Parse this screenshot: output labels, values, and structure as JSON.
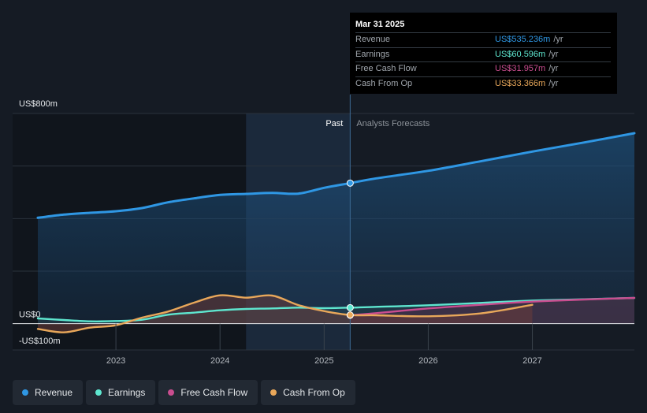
{
  "colors": {
    "background": "#151b24",
    "revenue": "#2f97e4",
    "earnings": "#5ee6cf",
    "fcf": "#c94d8f",
    "cfo": "#e8a75a",
    "past_shade": "#1c2b3e"
  },
  "tooltip": {
    "date": "Mar 31 2025",
    "unit": "/yr",
    "rows": [
      {
        "label": "Revenue",
        "value": "US$535.236m",
        "color": "#2f97e4"
      },
      {
        "label": "Earnings",
        "value": "US$60.596m",
        "color": "#5ee6cf"
      },
      {
        "label": "Free Cash Flow",
        "value": "US$31.957m",
        "color": "#c94d8f"
      },
      {
        "label": "Cash From Op",
        "value": "US$33.366m",
        "color": "#e8a75a"
      }
    ]
  },
  "legend": [
    {
      "label": "Revenue",
      "color": "#2f97e4"
    },
    {
      "label": "Earnings",
      "color": "#5ee6cf"
    },
    {
      "label": "Free Cash Flow",
      "color": "#c94d8f"
    },
    {
      "label": "Cash From Op",
      "color": "#e8a75a"
    }
  ],
  "chart_data": {
    "type": "line",
    "title": "",
    "xlabel": "",
    "ylabel": "",
    "ylim": [
      -100,
      800
    ],
    "xlim": [
      2022.25,
      2027.98
    ],
    "y_axis_labels": [
      {
        "value": 800,
        "label": "US$800m"
      },
      {
        "value": 0,
        "label": "US$0"
      },
      {
        "value": -100,
        "label": "-US$100m"
      }
    ],
    "x_ticks": [
      {
        "value": 2023,
        "label": "2023"
      },
      {
        "value": 2024,
        "label": "2024"
      },
      {
        "value": 2025,
        "label": "2025"
      },
      {
        "value": 2026,
        "label": "2026"
      },
      {
        "value": 2027,
        "label": "2027"
      }
    ],
    "gridlines": [
      200,
      400,
      600
    ],
    "past_label": "Past",
    "forecast_label": "Analysts Forecasts",
    "divider_x": 2025.25,
    "highlight_start_x": 2024.25,
    "series": [
      {
        "name": "Revenue",
        "key": "revenue",
        "points": [
          [
            2022.25,
            403
          ],
          [
            2022.5,
            415
          ],
          [
            2022.75,
            422
          ],
          [
            2023,
            428
          ],
          [
            2023.25,
            440
          ],
          [
            2023.5,
            462
          ],
          [
            2023.75,
            477
          ],
          [
            2024,
            490
          ],
          [
            2024.25,
            494
          ],
          [
            2024.5,
            498
          ],
          [
            2024.75,
            495
          ],
          [
            2025,
            517
          ],
          [
            2025.25,
            535
          ],
          [
            2025.5,
            553
          ],
          [
            2026,
            582
          ],
          [
            2026.5,
            618
          ],
          [
            2027,
            655
          ],
          [
            2027.5,
            690
          ],
          [
            2027.98,
            725
          ]
        ]
      },
      {
        "name": "Earnings",
        "key": "earnings",
        "points": [
          [
            2022.25,
            20
          ],
          [
            2022.5,
            14
          ],
          [
            2022.75,
            9
          ],
          [
            2023,
            10
          ],
          [
            2023.25,
            15
          ],
          [
            2023.5,
            34
          ],
          [
            2023.75,
            42
          ],
          [
            2024,
            51
          ],
          [
            2024.25,
            56
          ],
          [
            2024.5,
            58
          ],
          [
            2024.75,
            61
          ],
          [
            2025,
            59
          ],
          [
            2025.25,
            61
          ],
          [
            2025.5,
            64
          ],
          [
            2026,
            70
          ],
          [
            2026.5,
            79
          ],
          [
            2027,
            88
          ],
          [
            2027.5,
            93
          ],
          [
            2027.98,
            98
          ]
        ]
      },
      {
        "name": "Free Cash Flow",
        "key": "fcf",
        "points": [
          [
            2025.25,
            32
          ],
          [
            2025.5,
            40
          ],
          [
            2026,
            58
          ],
          [
            2026.5,
            72
          ],
          [
            2027,
            84
          ],
          [
            2027.5,
            92
          ],
          [
            2027.98,
            98
          ]
        ]
      },
      {
        "name": "Cash From Op",
        "key": "cfo",
        "points": [
          [
            2022.25,
            -20
          ],
          [
            2022.5,
            -33
          ],
          [
            2022.75,
            -15
          ],
          [
            2023,
            -6
          ],
          [
            2023.25,
            23
          ],
          [
            2023.5,
            46
          ],
          [
            2023.75,
            80
          ],
          [
            2024,
            108
          ],
          [
            2024.25,
            99
          ],
          [
            2024.5,
            107
          ],
          [
            2024.75,
            71
          ],
          [
            2025,
            48
          ],
          [
            2025.25,
            33
          ],
          [
            2025.5,
            32
          ],
          [
            2026,
            28
          ],
          [
            2026.5,
            39
          ],
          [
            2027,
            72
          ]
        ]
      }
    ]
  }
}
